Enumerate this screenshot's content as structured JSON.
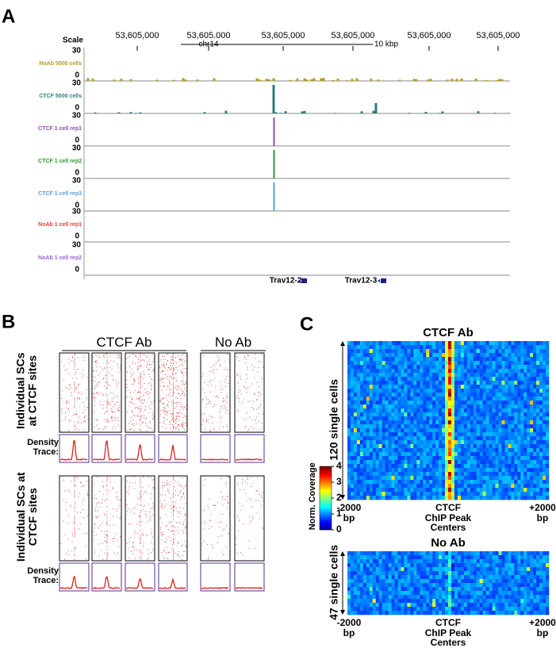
{
  "panels": {
    "a": {
      "label": "A",
      "scale_label": "Scale",
      "coordinates": [
        "53,605,000",
        "53,605.000",
        "53,605,000",
        "53,605,000",
        "53,605,000",
        "53,605,000"
      ],
      "chromosome": "chr14",
      "scale_bar": "10 kbp",
      "tracks": [
        {
          "name": "NoAb 5000 cells",
          "color": "#b39a1e",
          "max": 30,
          "min": 0
        },
        {
          "name": "CTCF 5000 cells",
          "color": "#2e7d7a",
          "max": 30,
          "min": 0
        },
        {
          "name": "CTCF 1 cell rep1",
          "color": "#8e4fa3",
          "max": 30,
          "min": 0
        },
        {
          "name": "CTCF 1 cell rep2",
          "color": "#2e9a2e",
          "max": 30,
          "min": 0
        },
        {
          "name": "CTCF 1 cell rep3",
          "color": "#5aa0d8",
          "max": 30,
          "min": 0
        },
        {
          "name": "NoAb 1 cell rep1",
          "color": "#e0413c",
          "max": 30,
          "min": 0
        },
        {
          "name": "NoAb 1 cell rep2",
          "color": "#9b62d0",
          "max": 30,
          "min": 0
        }
      ],
      "genes": [
        "Trav12-2",
        "Trav12-3"
      ]
    },
    "b": {
      "label": "B",
      "group_ctcf": "CTCF Ab",
      "group_noab": "No Ab",
      "row_labels": [
        "Individual SCs at CTCF sites",
        "Individual SCs at CTCF sites"
      ],
      "trace_labels": [
        "Density Trace:",
        "Density Trace:"
      ]
    },
    "c": {
      "label": "C",
      "heatmaps": [
        {
          "title": "CTCF Ab",
          "rows_label": "120 single cells",
          "left": "-2000 bp",
          "center": "CTCF ChIP Peak Centers",
          "right": "+2000 bp"
        },
        {
          "title": "No Ab",
          "rows_label": "47 single cells",
          "left": "-2000 bp",
          "center": "CTCF ChIP Peak Centers",
          "right": "+2000 bp"
        }
      ],
      "colorbar": {
        "label": "Norm. Coverage",
        "clim": [
          0,
          4
        ],
        "ticks": [
          0,
          1,
          2,
          3,
          4
        ]
      }
    }
  }
}
